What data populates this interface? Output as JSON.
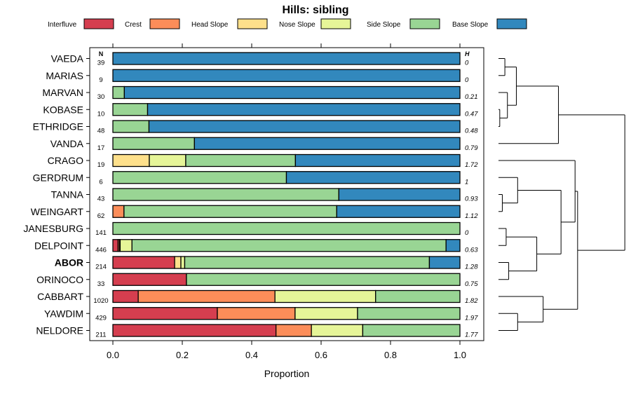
{
  "chart_data": {
    "type": "bar",
    "subtype": "stacked-horizontal-proportion",
    "title": "Hills: sibling",
    "xlabel": "Proportion",
    "ylabel": "",
    "xlim": [
      0,
      1
    ],
    "x_ticks": [
      "0.0",
      "0.2",
      "0.4",
      "0.6",
      "0.8",
      "1.0"
    ],
    "x_tick_values": [
      0,
      0.2,
      0.4,
      0.6,
      0.8,
      1.0
    ],
    "n_header": "N",
    "h_header": "H",
    "highlight_category": "ABOR",
    "legend_position": "top",
    "series": [
      {
        "name": "Interfluve",
        "color": "#D53E4F"
      },
      {
        "name": "Crest",
        "color": "#FC8D59"
      },
      {
        "name": "Head Slope",
        "color": "#FEE08B"
      },
      {
        "name": "Nose Slope",
        "color": "#E6F598"
      },
      {
        "name": "Side Slope",
        "color": "#99D594"
      },
      {
        "name": "Base Slope",
        "color": "#3288BD"
      }
    ],
    "categories": [
      "VAEDA",
      "MARIAS",
      "MARVAN",
      "KOBASE",
      "ETHRIDGE",
      "VANDA",
      "CRAGO",
      "GERDRUM",
      "TANNA",
      "WEINGART",
      "JANESBURG",
      "DELPOINT",
      "ABOR",
      "ORINOCO",
      "CABBART",
      "YAWDIM",
      "NELDORE"
    ],
    "n_labels": [
      "39",
      "9",
      "30",
      "10",
      "48",
      "17",
      "19",
      "6",
      "43",
      "62",
      "141",
      "446",
      "214",
      "33",
      "1020",
      "429",
      "211"
    ],
    "h_labels": [
      "0",
      "0",
      "0.21",
      "0.47",
      "0.48",
      "0.79",
      "1.72",
      "1",
      "0.93",
      "1.12",
      "0",
      "0.63",
      "1.28",
      "0.75",
      "1.82",
      "1.97",
      "1.77"
    ],
    "values": [
      [
        0,
        0,
        0,
        0,
        0,
        1.0
      ],
      [
        0,
        0,
        0,
        0,
        0,
        1.0
      ],
      [
        0,
        0,
        0,
        0,
        0.033,
        0.967
      ],
      [
        0,
        0,
        0,
        0,
        0.1,
        0.9
      ],
      [
        0,
        0,
        0,
        0,
        0.104,
        0.896
      ],
      [
        0,
        0,
        0,
        0,
        0.235,
        0.765
      ],
      [
        0,
        0,
        0.105,
        0.105,
        0.316,
        0.474
      ],
      [
        0,
        0,
        0,
        0,
        0.5,
        0.5
      ],
      [
        0,
        0,
        0,
        0,
        0.651,
        0.349
      ],
      [
        0,
        0.032,
        0,
        0,
        0.613,
        0.355
      ],
      [
        0,
        0,
        0,
        0,
        1.0,
        0
      ],
      [
        0.015,
        0.004,
        0.002,
        0.034,
        0.905,
        0.04
      ],
      [
        0.178,
        0,
        0.018,
        0.011,
        0.705,
        0.088
      ],
      [
        0.212,
        0,
        0,
        0,
        0.788,
        0
      ],
      [
        0.073,
        0.394,
        0,
        0.29,
        0.243,
        0
      ],
      [
        0.301,
        0.224,
        0,
        0.18,
        0.295,
        0
      ],
      [
        0.47,
        0.102,
        0,
        0.148,
        0.28,
        0
      ]
    ],
    "dendrogram": {
      "leaves": [
        "VAEDA",
        "MARIAS",
        "MARVAN",
        "KOBASE",
        "ETHRIDGE",
        "VANDA",
        "CRAGO",
        "GERDRUM",
        "TANNA",
        "WEINGART",
        "JANESBURG",
        "DELPOINT",
        "ABOR",
        "ORINOCO",
        "CABBART",
        "YAWDIM",
        "NELDORE"
      ],
      "merges": [
        {
          "a": 0,
          "b": 1,
          "height": 0.05
        },
        {
          "a": 3,
          "b": 4,
          "height": 0.01
        },
        {
          "a": 2,
          "b": 1,
          "height": 0.07
        },
        {
          "a": -1,
          "b": 2,
          "height": 0.12
        },
        {
          "a": -3,
          "b": 5,
          "height": 0.2
        },
        {
          "a": 8,
          "b": 9,
          "height": 0.03
        },
        {
          "a": 7,
          "b": 5,
          "height": 0.11
        },
        {
          "a": 10,
          "b": 11,
          "height": 0.06
        },
        {
          "a": 12,
          "b": 13,
          "height": 0.06
        },
        {
          "a": 7,
          "b": 8,
          "height": 0.15
        },
        {
          "a": 14,
          "b": 9,
          "height": 0.31
        },
        {
          "a": 10,
          "b": 15,
          "height": 0.44
        },
        {
          "a": 11,
          "b": 16,
          "height": 0.65
        },
        {
          "a": 12,
          "b": -13,
          "height": 0.88
        },
        {
          "a": 6,
          "b": -14,
          "height": 1.0
        },
        {
          "a": 4,
          "b": 13,
          "height": 0.24
        }
      ]
    }
  }
}
